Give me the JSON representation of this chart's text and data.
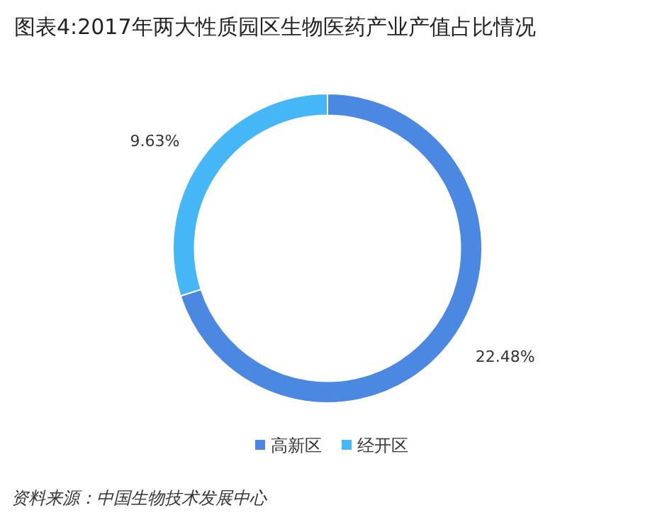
{
  "chart_data": {
    "type": "donut",
    "title": "图表4:2017年两大性质园区生物医药产业产值占比情况",
    "categories": [
      "高新区",
      "经开区"
    ],
    "values": [
      22.48,
      9.63
    ],
    "colors": [
      "#4a88e2",
      "#45b6f6"
    ],
    "value_labels": [
      "22.48%",
      "9.63%"
    ],
    "legend": "bottom",
    "annotations": [
      "资料来源：中国生物技术发展中心"
    ]
  }
}
